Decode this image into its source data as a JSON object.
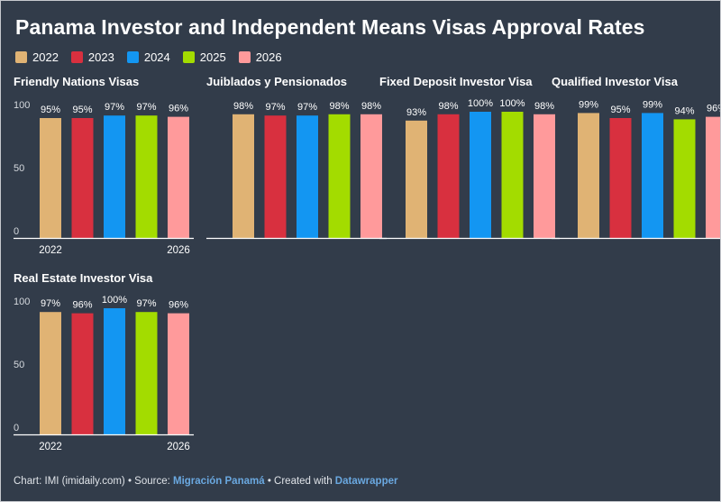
{
  "title": "Panama Investor and Independent Means Visas Approval Rates",
  "legend": [
    {
      "label": "2022",
      "color": "#e0b374"
    },
    {
      "label": "2023",
      "color": "#d8303f"
    },
    {
      "label": "2024",
      "color": "#1396f2"
    },
    {
      "label": "2025",
      "color": "#a3dc00"
    },
    {
      "label": "2026",
      "color": "#ff9a9b"
    }
  ],
  "footer": {
    "prefix": "Chart: IMI (imidaily.com) • Source: ",
    "source": "Migración Panamá",
    "middle": " • Created with ",
    "tool": "Datawrapper"
  },
  "chart_data": [
    {
      "type": "bar",
      "title": "Friendly Nations Visas",
      "categories": [
        "2022",
        "2023",
        "2024",
        "2025",
        "2026"
      ],
      "values": [
        95,
        95,
        97,
        97,
        96
      ],
      "labels": [
        "95%",
        "95%",
        "97%",
        "97%",
        "96%"
      ],
      "ylim": [
        0,
        100
      ],
      "yticks": [
        "100",
        "50",
        "0"
      ],
      "xticks": [
        "2022",
        "2026"
      ],
      "grid": false
    },
    {
      "type": "bar",
      "title": "Juiblados y Pensionados",
      "categories": [
        "2022",
        "2023",
        "2024",
        "2025",
        "2026"
      ],
      "values": [
        98,
        97,
        97,
        98,
        98
      ],
      "labels": [
        "98%",
        "97%",
        "97%",
        "98%",
        "98%"
      ],
      "ylim": [
        0,
        100
      ],
      "grid": false
    },
    {
      "type": "bar",
      "title": "Fixed Deposit Investor Visa",
      "categories": [
        "2022",
        "2023",
        "2024",
        "2025",
        "2026"
      ],
      "values": [
        93,
        98,
        100,
        100,
        98
      ],
      "labels": [
        "93%",
        "98%",
        "100%",
        "100%",
        "98%"
      ],
      "ylim": [
        0,
        100
      ],
      "grid": false
    },
    {
      "type": "bar",
      "title": "Qualified Investor Visa",
      "categories": [
        "2022",
        "2023",
        "2024",
        "2025",
        "2026"
      ],
      "values": [
        99,
        95,
        99,
        94,
        96
      ],
      "labels": [
        "99%",
        "95%",
        "99%",
        "94%",
        "96%"
      ],
      "ylim": [
        0,
        100
      ],
      "grid": false
    },
    {
      "type": "bar",
      "title": "Real Estate Investor Visa",
      "categories": [
        "2022",
        "2023",
        "2024",
        "2025",
        "2026"
      ],
      "values": [
        97,
        96,
        100,
        97,
        96
      ],
      "labels": [
        "97%",
        "96%",
        "100%",
        "97%",
        "96%"
      ],
      "ylim": [
        0,
        100
      ],
      "yticks": [
        "100",
        "50",
        "0"
      ],
      "xticks": [
        "2022",
        "2026"
      ],
      "grid": false
    }
  ]
}
